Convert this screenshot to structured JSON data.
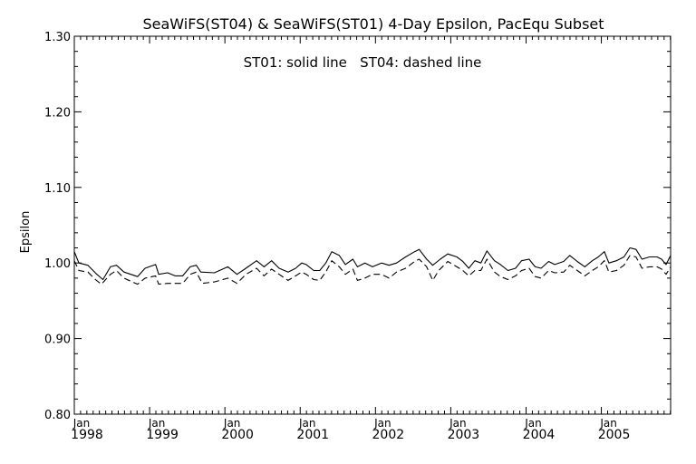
{
  "chart_data": {
    "type": "line",
    "title": "SeaWiFS(ST04) & SeaWiFS(ST01) 4-Day Epsilon, PacEqu Subset",
    "annotation": "ST01: solid line   ST04: dashed line",
    "xlabel": "",
    "ylabel": "Epsilon",
    "xlim": [
      1998.0,
      2005.92
    ],
    "ylim": [
      0.8,
      1.3
    ],
    "yticks": [
      "0.80",
      "0.90",
      "1.00",
      "1.10",
      "1.20",
      "1.30"
    ],
    "xticks": [
      {
        "month": "Jan",
        "year": "1998",
        "x": 1998
      },
      {
        "month": "Jan",
        "year": "1999",
        "x": 1999
      },
      {
        "month": "Jan",
        "year": "2000",
        "x": 2000
      },
      {
        "month": "Jan",
        "year": "2001",
        "x": 2001
      },
      {
        "month": "Jan",
        "year": "2002",
        "x": 2002
      },
      {
        "month": "Jan",
        "year": "2003",
        "x": 2003
      },
      {
        "month": "Jan",
        "year": "2004",
        "x": 2004
      },
      {
        "month": "Jan",
        "year": "2005",
        "x": 2005
      }
    ],
    "grid": false,
    "series": [
      {
        "name": "ST01",
        "style": "solid",
        "points": [
          [
            1998.0,
            1.015
          ],
          [
            1998.06,
            1.0
          ],
          [
            1998.18,
            0.997
          ],
          [
            1998.3,
            0.985
          ],
          [
            1998.38,
            0.978
          ],
          [
            1998.48,
            0.995
          ],
          [
            1998.56,
            0.997
          ],
          [
            1998.66,
            0.988
          ],
          [
            1998.84,
            0.982
          ],
          [
            1998.94,
            0.993
          ],
          [
            1999.08,
            0.998
          ],
          [
            1999.12,
            0.985
          ],
          [
            1999.24,
            0.987
          ],
          [
            1999.34,
            0.983
          ],
          [
            1999.44,
            0.983
          ],
          [
            1999.54,
            0.995
          ],
          [
            1999.62,
            0.997
          ],
          [
            1999.68,
            0.988
          ],
          [
            1999.86,
            0.987
          ],
          [
            2000.04,
            0.995
          ],
          [
            2000.16,
            0.985
          ],
          [
            2000.28,
            0.993
          ],
          [
            2000.42,
            1.003
          ],
          [
            2000.52,
            0.995
          ],
          [
            2000.62,
            1.003
          ],
          [
            2000.72,
            0.993
          ],
          [
            2000.84,
            0.988
          ],
          [
            2000.94,
            0.993
          ],
          [
            2001.02,
            1.0
          ],
          [
            2001.08,
            0.998
          ],
          [
            2001.18,
            0.99
          ],
          [
            2001.26,
            0.99
          ],
          [
            2001.34,
            1.0
          ],
          [
            2001.42,
            1.015
          ],
          [
            2001.52,
            1.01
          ],
          [
            2001.6,
            0.998
          ],
          [
            2001.7,
            1.005
          ],
          [
            2001.76,
            0.995
          ],
          [
            2001.86,
            1.0
          ],
          [
            2001.96,
            0.995
          ],
          [
            2002.08,
            1.0
          ],
          [
            2002.18,
            0.997
          ],
          [
            2002.28,
            1.0
          ],
          [
            2002.4,
            1.008
          ],
          [
            2002.52,
            1.015
          ],
          [
            2002.58,
            1.018
          ],
          [
            2002.68,
            1.005
          ],
          [
            2002.76,
            0.997
          ],
          [
            2002.86,
            1.005
          ],
          [
            2002.96,
            1.012
          ],
          [
            2003.08,
            1.008
          ],
          [
            2003.16,
            1.002
          ],
          [
            2003.24,
            0.993
          ],
          [
            2003.32,
            1.003
          ],
          [
            2003.4,
            1.0
          ],
          [
            2003.48,
            1.016
          ],
          [
            2003.58,
            1.003
          ],
          [
            2003.66,
            0.998
          ],
          [
            2003.76,
            0.99
          ],
          [
            2003.86,
            0.993
          ],
          [
            2003.94,
            1.003
          ],
          [
            2004.04,
            1.005
          ],
          [
            2004.12,
            0.995
          ],
          [
            2004.2,
            0.993
          ],
          [
            2004.3,
            1.002
          ],
          [
            2004.38,
            0.998
          ],
          [
            2004.5,
            1.002
          ],
          [
            2004.58,
            1.01
          ],
          [
            2004.68,
            1.002
          ],
          [
            2004.78,
            0.995
          ],
          [
            2004.88,
            1.003
          ],
          [
            2004.96,
            1.008
          ],
          [
            2005.04,
            1.015
          ],
          [
            2005.1,
            1.0
          ],
          [
            2005.2,
            1.003
          ],
          [
            2005.3,
            1.008
          ],
          [
            2005.38,
            1.02
          ],
          [
            2005.46,
            1.018
          ],
          [
            2005.54,
            1.005
          ],
          [
            2005.64,
            1.008
          ],
          [
            2005.74,
            1.008
          ],
          [
            2005.8,
            1.005
          ],
          [
            2005.86,
            0.998
          ],
          [
            2005.92,
            1.01
          ]
        ]
      },
      {
        "name": "ST04",
        "style": "dashed",
        "points": [
          [
            1998.0,
            1.003
          ],
          [
            1998.06,
            0.99
          ],
          [
            1998.18,
            0.988
          ],
          [
            1998.28,
            0.978
          ],
          [
            1998.36,
            0.972
          ],
          [
            1998.48,
            0.985
          ],
          [
            1998.56,
            0.99
          ],
          [
            1998.66,
            0.98
          ],
          [
            1998.84,
            0.972
          ],
          [
            1998.94,
            0.98
          ],
          [
            1999.08,
            0.983
          ],
          [
            1999.12,
            0.972
          ],
          [
            1999.24,
            0.973
          ],
          [
            1999.34,
            0.973
          ],
          [
            1999.44,
            0.973
          ],
          [
            1999.54,
            0.985
          ],
          [
            1999.62,
            0.988
          ],
          [
            1999.7,
            0.973
          ],
          [
            1999.86,
            0.975
          ],
          [
            2000.04,
            0.98
          ],
          [
            2000.16,
            0.973
          ],
          [
            2000.28,
            0.985
          ],
          [
            2000.42,
            0.993
          ],
          [
            2000.52,
            0.983
          ],
          [
            2000.62,
            0.992
          ],
          [
            2000.72,
            0.985
          ],
          [
            2000.84,
            0.977
          ],
          [
            2000.94,
            0.983
          ],
          [
            2001.02,
            0.988
          ],
          [
            2001.08,
            0.985
          ],
          [
            2001.18,
            0.978
          ],
          [
            2001.26,
            0.977
          ],
          [
            2001.34,
            0.988
          ],
          [
            2001.42,
            1.003
          ],
          [
            2001.52,
            0.995
          ],
          [
            2001.6,
            0.985
          ],
          [
            2001.7,
            0.992
          ],
          [
            2001.76,
            0.977
          ],
          [
            2001.86,
            0.98
          ],
          [
            2001.96,
            0.985
          ],
          [
            2002.08,
            0.985
          ],
          [
            2002.18,
            0.98
          ],
          [
            2002.28,
            0.988
          ],
          [
            2002.4,
            0.993
          ],
          [
            2002.52,
            1.002
          ],
          [
            2002.58,
            1.005
          ],
          [
            2002.68,
            0.995
          ],
          [
            2002.76,
            0.977
          ],
          [
            2002.84,
            0.99
          ],
          [
            2002.96,
            1.002
          ],
          [
            2003.08,
            0.995
          ],
          [
            2003.16,
            0.99
          ],
          [
            2003.24,
            0.983
          ],
          [
            2003.32,
            0.99
          ],
          [
            2003.4,
            0.99
          ],
          [
            2003.48,
            1.005
          ],
          [
            2003.58,
            0.988
          ],
          [
            2003.66,
            0.982
          ],
          [
            2003.76,
            0.978
          ],
          [
            2003.86,
            0.983
          ],
          [
            2003.94,
            0.99
          ],
          [
            2004.04,
            0.993
          ],
          [
            2004.12,
            0.982
          ],
          [
            2004.2,
            0.98
          ],
          [
            2004.3,
            0.99
          ],
          [
            2004.38,
            0.987
          ],
          [
            2004.5,
            0.988
          ],
          [
            2004.58,
            0.997
          ],
          [
            2004.68,
            0.99
          ],
          [
            2004.78,
            0.983
          ],
          [
            2004.88,
            0.99
          ],
          [
            2004.96,
            0.995
          ],
          [
            2005.04,
            1.003
          ],
          [
            2005.1,
            0.988
          ],
          [
            2005.2,
            0.99
          ],
          [
            2005.3,
            0.997
          ],
          [
            2005.38,
            1.01
          ],
          [
            2005.46,
            1.008
          ],
          [
            2005.54,
            0.993
          ],
          [
            2005.64,
            0.995
          ],
          [
            2005.74,
            0.995
          ],
          [
            2005.8,
            0.992
          ],
          [
            2005.86,
            0.985
          ],
          [
            2005.92,
            0.995
          ]
        ]
      }
    ]
  }
}
